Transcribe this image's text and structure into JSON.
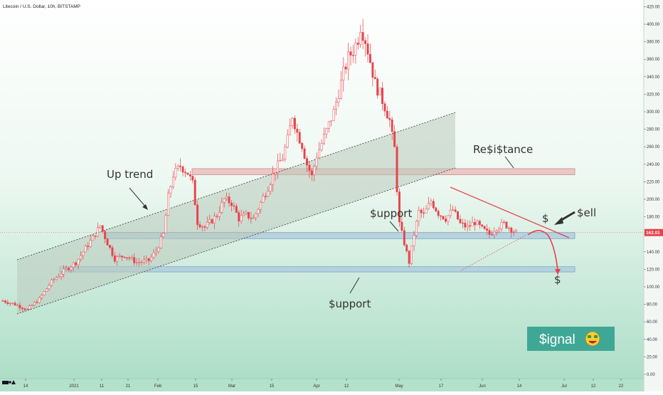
{
  "header": {
    "symbol_title": "Litecoin / U.S. Dollar, 10h, BITSTAMP"
  },
  "chart_data": {
    "type": "candlestick",
    "title": "Litecoin / U.S. Dollar, 10h, BITSTAMP",
    "ylim": [
      -5,
      420
    ],
    "y_ticks": [
      0,
      20,
      40,
      60,
      80,
      100,
      120,
      140,
      160,
      180,
      200,
      220,
      240,
      260,
      280,
      300,
      320,
      340,
      360,
      380,
      400,
      420
    ],
    "y_tick_labels": [
      "0.00",
      "20.00",
      "40.00",
      "60.00",
      "80.00",
      "100.00",
      "120.00",
      "140.00",
      "160.00",
      "180.00",
      "200.00",
      "220.00",
      "240.00",
      "260.00",
      "280.00",
      "300.00",
      "320.00",
      "340.00",
      "360.00",
      "380.00",
      "400.00",
      "420.00"
    ],
    "x_ticks": [
      "14",
      "2021",
      "11",
      "21",
      "Feb",
      "15",
      "Mar",
      "15",
      "Apr",
      "12",
      "May",
      "17",
      "Jun",
      "14",
      "Jul",
      "12",
      "22"
    ],
    "price_path": [
      [
        0,
        84
      ],
      [
        5,
        80
      ],
      [
        10,
        74
      ],
      [
        15,
        86
      ],
      [
        20,
        106
      ],
      [
        25,
        118
      ],
      [
        30,
        128
      ],
      [
        33,
        140
      ],
      [
        37,
        156
      ],
      [
        40,
        170
      ],
      [
        43,
        150
      ],
      [
        46,
        132
      ],
      [
        50,
        136
      ],
      [
        55,
        128
      ],
      [
        60,
        130
      ],
      [
        63,
        141
      ],
      [
        66,
        160
      ],
      [
        68,
        203
      ],
      [
        70,
        228
      ],
      [
        73,
        238
      ],
      [
        76,
        230
      ],
      [
        78,
        218
      ],
      [
        80,
        174
      ],
      [
        83,
        168
      ],
      [
        86,
        176
      ],
      [
        88,
        182
      ],
      [
        91,
        200
      ],
      [
        94,
        196
      ],
      [
        97,
        178
      ],
      [
        100,
        182
      ],
      [
        103,
        178
      ],
      [
        106,
        196
      ],
      [
        109,
        214
      ],
      [
        112,
        234
      ],
      [
        115,
        248
      ],
      [
        117,
        268
      ],
      [
        119,
        296
      ],
      [
        121,
        276
      ],
      [
        123,
        262
      ],
      [
        125,
        240
      ],
      [
        127,
        226
      ],
      [
        129,
        250
      ],
      [
        131,
        264
      ],
      [
        133,
        278
      ],
      [
        136,
        300
      ],
      [
        138,
        322
      ],
      [
        140,
        344
      ],
      [
        142,
        362
      ],
      [
        144,
        370
      ],
      [
        146,
        384
      ],
      [
        147,
        398
      ],
      [
        149,
        382
      ],
      [
        151,
        358
      ],
      [
        153,
        332
      ],
      [
        155,
        320
      ],
      [
        157,
        306
      ],
      [
        159,
        290
      ],
      [
        160,
        272
      ],
      [
        161,
        258
      ],
      [
        162,
        212
      ],
      [
        163,
        172
      ],
      [
        165,
        150
      ],
      [
        167,
        128
      ],
      [
        169,
        160
      ],
      [
        171,
        186
      ],
      [
        173,
        182
      ],
      [
        176,
        198
      ],
      [
        179,
        184
      ],
      [
        182,
        178
      ],
      [
        185,
        188
      ],
      [
        188,
        172
      ],
      [
        191,
        168
      ],
      [
        194,
        174
      ],
      [
        197,
        166
      ],
      [
        200,
        160
      ],
      [
        203,
        168
      ],
      [
        206,
        172
      ],
      [
        209,
        166
      ],
      [
        211,
        162
      ]
    ],
    "current_price": 162,
    "current_price_label": "162.01",
    "channel": {
      "lower_start": [
        0,
        70
      ],
      "lower_end": [
        162,
        236
      ],
      "upper_start": [
        0,
        130
      ],
      "upper_end": [
        162,
        300
      ],
      "label": "Up trend"
    },
    "zones": [
      {
        "name": "Resistance",
        "from": 228,
        "to": 235,
        "color": "#e9b7b7",
        "label": "Re$i$tance"
      },
      {
        "name": "Support",
        "from": 155,
        "to": 162,
        "color": "#a9c9de",
        "label": "$upport"
      },
      {
        "name": "Support",
        "from": 117,
        "to": 123,
        "color": "#a9c9de",
        "label": "$upport"
      }
    ],
    "annotations": {
      "sell": "$ell",
      "small_dollar": "$",
      "signal": "$ignal"
    },
    "colors": {
      "candles": "#e8424a",
      "channel_fill": "#b9cbbc",
      "trendline": "#e8424a",
      "signal_bg": "#3fa795",
      "price_label_bg": "#e8424a"
    },
    "grid": false,
    "legend": "none"
  }
}
